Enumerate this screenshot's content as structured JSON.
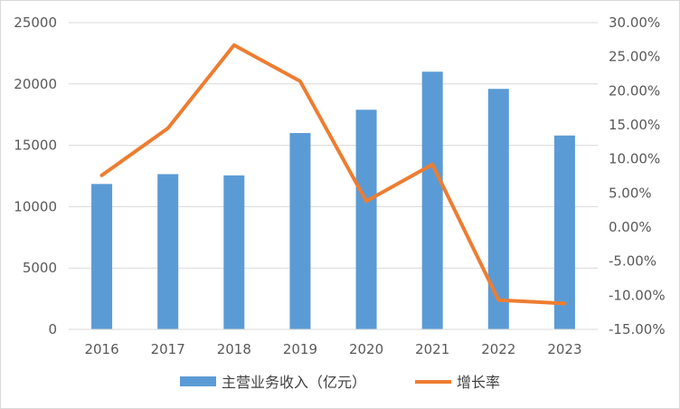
{
  "chart_data": {
    "type": "bar+line",
    "categories": [
      "2016",
      "2017",
      "2018",
      "2019",
      "2020",
      "2021",
      "2022",
      "2023"
    ],
    "series": [
      {
        "name": "主营业务收入（亿元）",
        "type": "bar",
        "axis": "left",
        "color": "#5B9BD5",
        "values": [
          11850,
          12650,
          12550,
          16000,
          17900,
          21000,
          19600,
          15800
        ]
      },
      {
        "name": "增长率",
        "type": "line",
        "axis": "right",
        "color": "#ED7D31",
        "values": [
          7.6,
          14.5,
          26.7,
          21.4,
          3.8,
          9.2,
          -10.7,
          -11.2
        ]
      }
    ],
    "y_left": {
      "ylim": [
        0,
        25000
      ],
      "ticks": [
        0,
        5000,
        10000,
        15000,
        20000,
        25000
      ],
      "tick_labels": [
        "0",
        "5000",
        "10000",
        "15000",
        "20000",
        "25000"
      ]
    },
    "y_right": {
      "ylim": [
        -15,
        30
      ],
      "ticks": [
        -15,
        -10,
        -5,
        0,
        5,
        10,
        15,
        20,
        25,
        30
      ],
      "tick_labels": [
        "-15.00%",
        "-10.00%",
        "-5.00%",
        "0.00%",
        "5.00%",
        "10.00%",
        "15.00%",
        "20.00%",
        "25.00%",
        "30.00%"
      ]
    },
    "grid": true,
    "legend": "bottom"
  }
}
